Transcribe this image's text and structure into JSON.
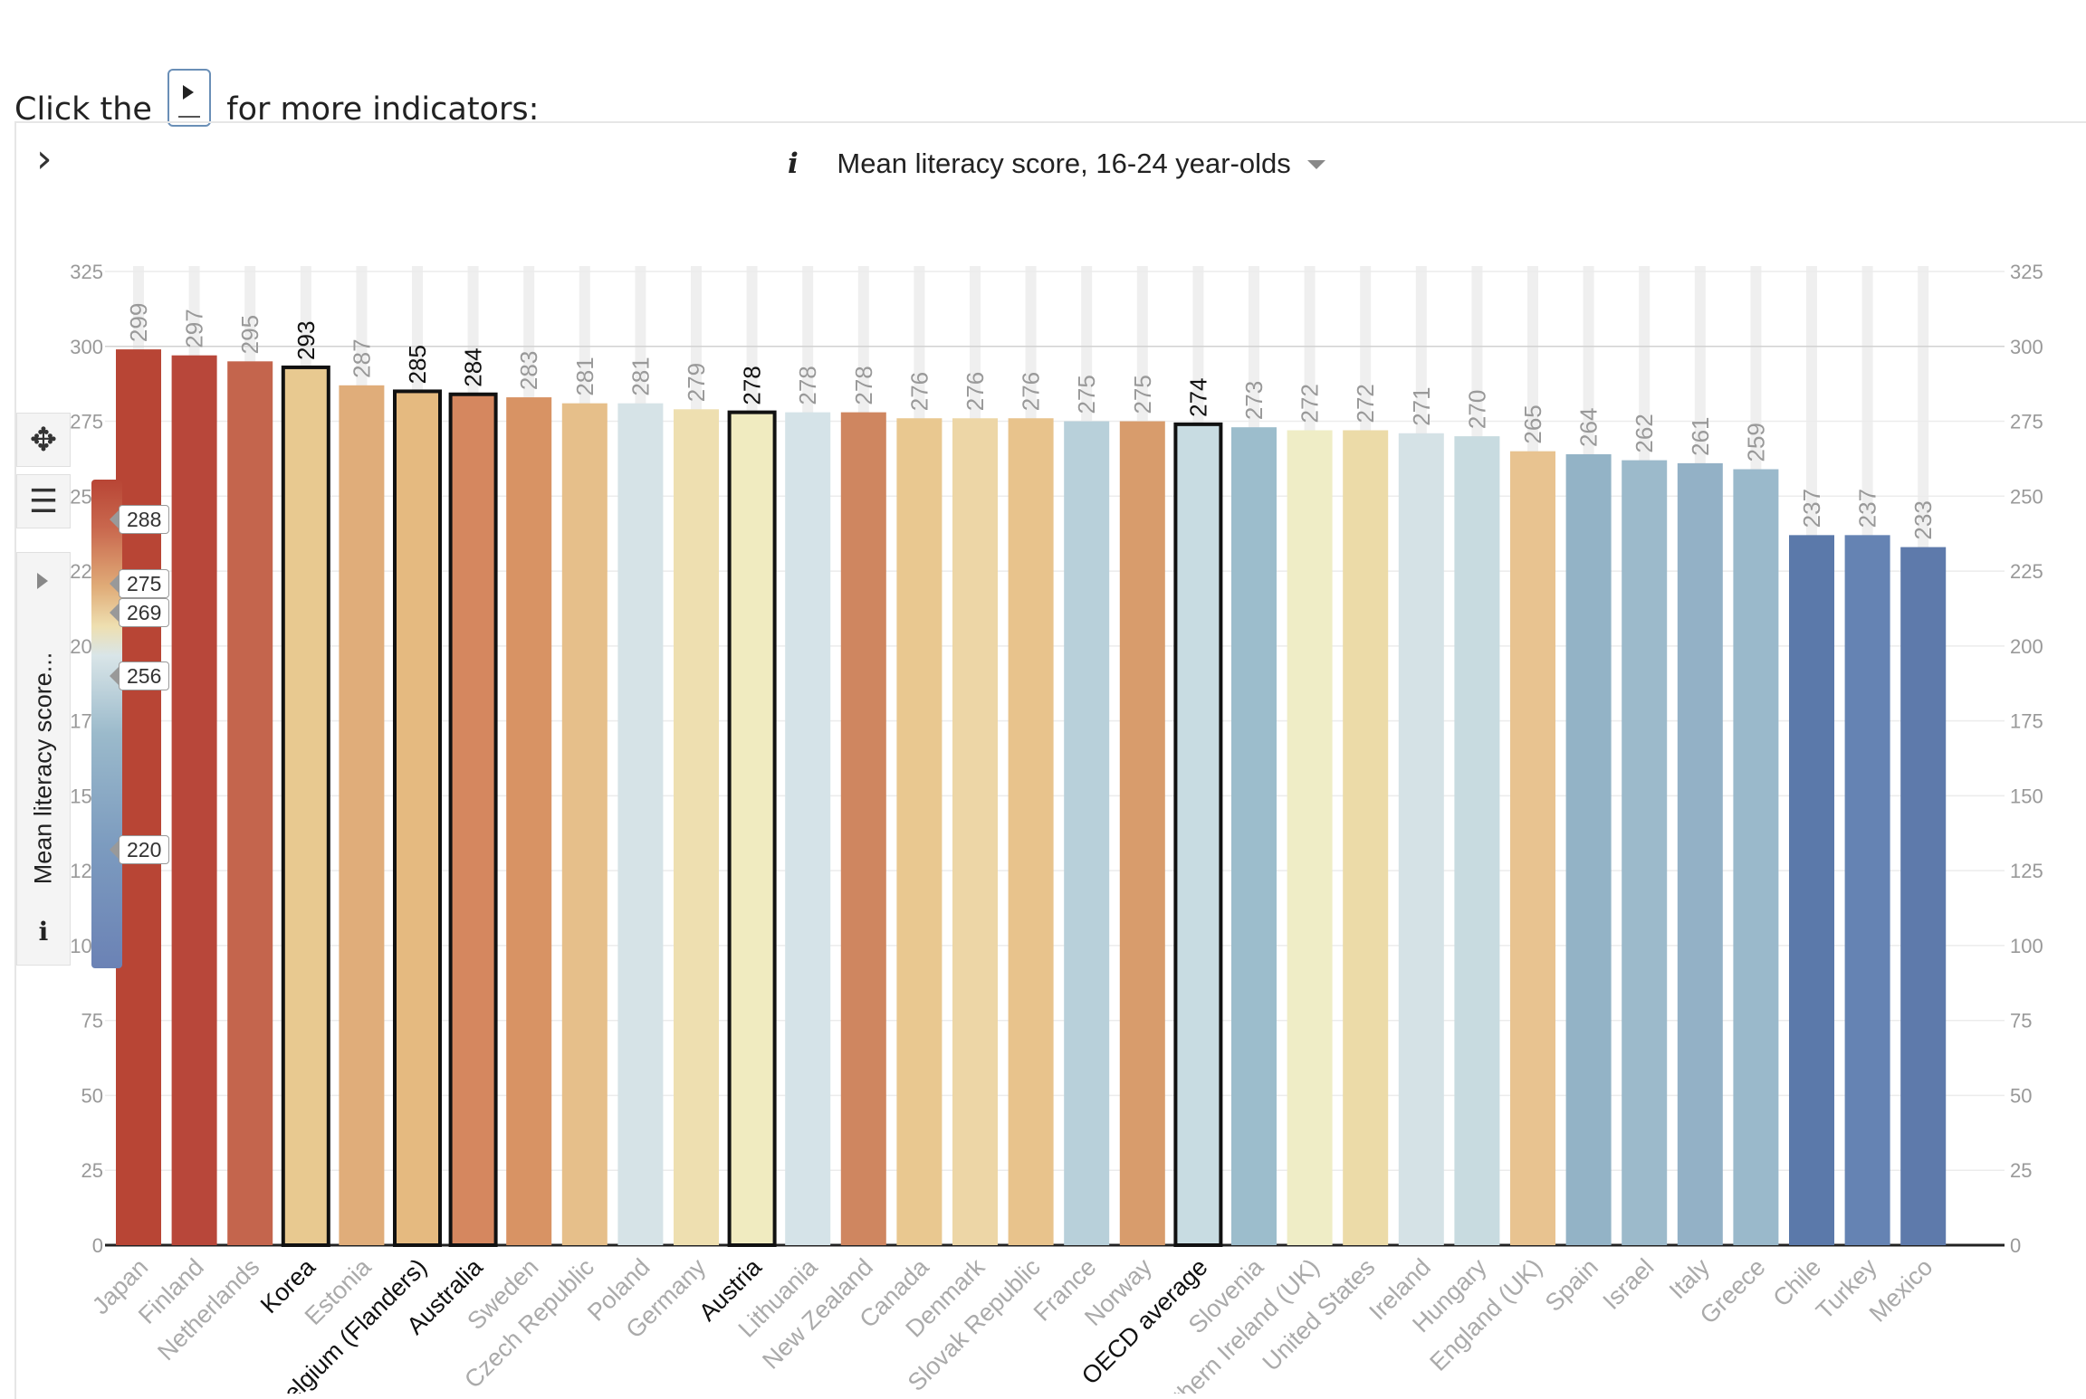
{
  "intro": {
    "before": "Click the",
    "after": "for more indicators:"
  },
  "title": "Mean literacy score, 16-24 year-olds",
  "sidebar": {
    "legend_label": "Mean literacy score...",
    "info": "i"
  },
  "legend_markers": [
    "288",
    "275",
    "269",
    "256",
    "220"
  ],
  "colors": {
    "high": "#b84535",
    "mid_high": "#e8bd85",
    "neutral": "#eee9c4",
    "mid_low": "#9bbacb",
    "low": "#5b79aa"
  },
  "chart_data": {
    "type": "bar",
    "title": "Mean literacy score, 16-24 year-olds",
    "categories": [
      "Japan",
      "Finland",
      "Netherlands",
      "Korea",
      "Estonia",
      "Belgium (Flanders)",
      "Australia",
      "Sweden",
      "Czech Republic",
      "Poland",
      "Germany",
      "Austria",
      "Lithuania",
      "New Zealand",
      "Canada",
      "Denmark",
      "Slovak Republic",
      "France",
      "Norway",
      "OECD average",
      "Slovenia",
      "Northern Ireland (UK)",
      "United States",
      "Ireland",
      "Hungary",
      "England (UK)",
      "Spain",
      "Israel",
      "Italy",
      "Greece",
      "Chile",
      "Turkey",
      "Mexico"
    ],
    "values": [
      299,
      297,
      295,
      293,
      287,
      285,
      284,
      283,
      281,
      281,
      279,
      278,
      278,
      278,
      276,
      276,
      276,
      275,
      275,
      274,
      273,
      272,
      272,
      271,
      270,
      265,
      264,
      262,
      261,
      259,
      237,
      237,
      233
    ],
    "highlighted": [
      "Korea",
      "Belgium (Flanders)",
      "Australia",
      "Austria",
      "OECD average"
    ],
    "colors": [
      "#b84535",
      "#b8473a",
      "#c4654d",
      "#e8c990",
      "#e0ad7a",
      "#e5ba80",
      "#d5875f",
      "#d89364",
      "#e6bf8a",
      "#d6e3e7",
      "#eedfb0",
      "#f0ebc0",
      "#d5e3e8",
      "#cf8660",
      "#e9c890",
      "#edd6a6",
      "#e8c38c",
      "#b8d0da",
      "#d89c6c",
      "#c8dce2",
      "#9cbdcc",
      "#efedc6",
      "#ecdba8",
      "#d5e2e6",
      "#c8dbe0",
      "#e8c390",
      "#93b3c6",
      "#9cbacb",
      "#93b1c6",
      "#9ab9cb",
      "#5b79aa",
      "#6583b3",
      "#5e7aab"
    ],
    "ylim": [
      0,
      325
    ],
    "yticks": [
      0,
      25,
      50,
      75,
      100,
      125,
      150,
      175,
      200,
      225,
      250,
      275,
      300,
      325
    ],
    "grid": true
  }
}
